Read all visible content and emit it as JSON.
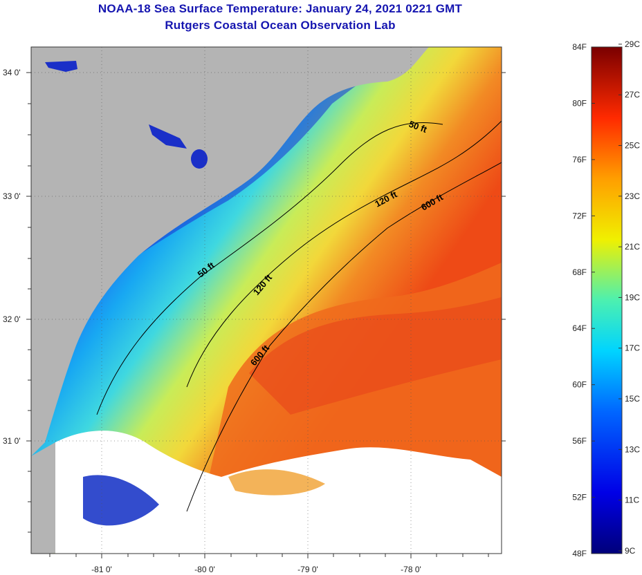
{
  "header": {
    "title": "NOAA-18 Sea Surface Temperature:  January 24, 2021 0221 GMT",
    "subtitle": "Rutgers Coastal Ocean Observation Lab"
  },
  "map": {
    "lon_ticks": [
      "-81 0'",
      "-80 0'",
      "-79 0'",
      "-78 0'"
    ],
    "lat_ticks": [
      "34 0'",
      "33 0'",
      "32 0'",
      "31 0'"
    ],
    "contours": [
      "50 ft",
      "120 ft",
      "600 ft",
      "50 ft",
      "120 ft",
      "600 ft"
    ],
    "colors": {
      "land": "#b4b4b4",
      "cloud": "#ffffff"
    }
  },
  "colorbar": {
    "fahrenheit": [
      "84F",
      "80F",
      "76F",
      "72F",
      "68F",
      "64F",
      "60F",
      "56F",
      "52F",
      "48F"
    ],
    "celsius": [
      "29C",
      "27C",
      "25C",
      "23C",
      "21C",
      "19C",
      "17C",
      "15C",
      "13C",
      "11C",
      "9C"
    ]
  }
}
